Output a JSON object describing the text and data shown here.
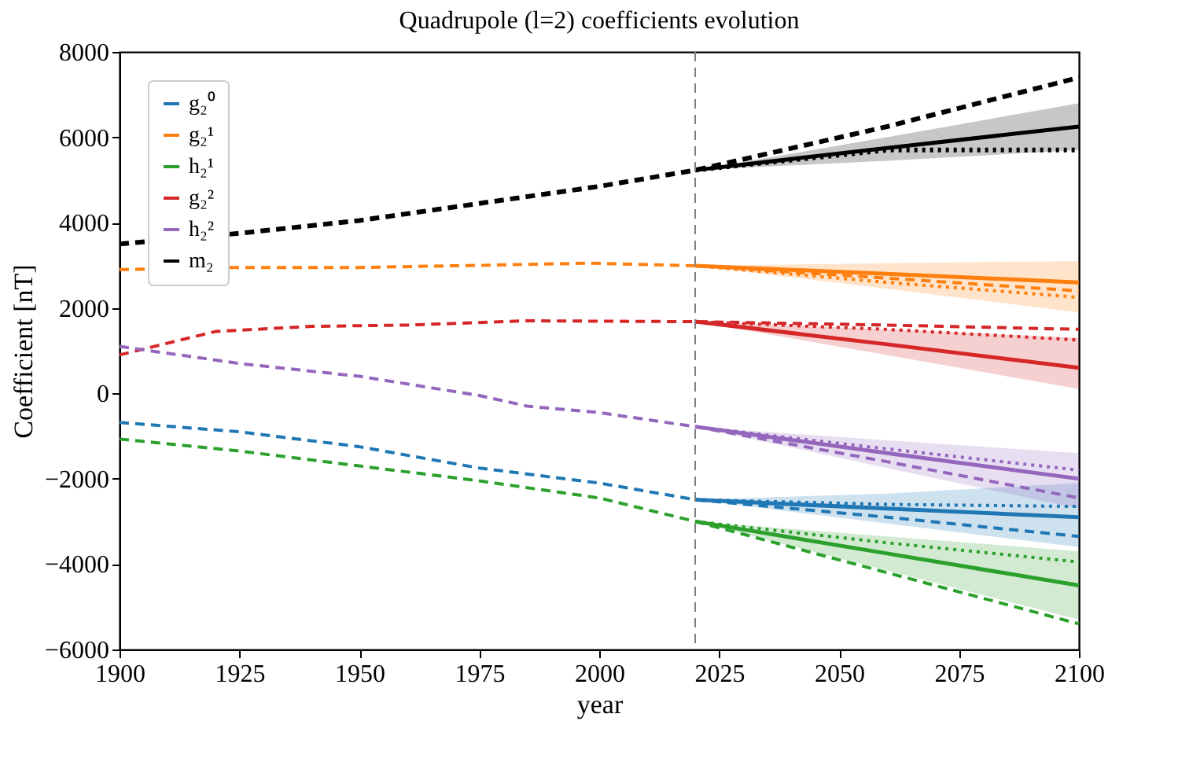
{
  "chart_data": {
    "type": "line",
    "title": "Quadrupole (l=2) coefficients evolution",
    "xlabel": "year",
    "ylabel": "Coefficient [nT]",
    "xlim": [
      1900,
      2100
    ],
    "xticks": [
      1900,
      1925,
      1950,
      1975,
      2000,
      2025,
      2050,
      2075,
      2100
    ],
    "ylim": [
      -6000,
      8000
    ],
    "yticks": [
      {
        "value": -6000,
        "label": "−6000"
      },
      {
        "value": -4000,
        "label": "−4000"
      },
      {
        "value": -2000,
        "label": "−2000"
      },
      0,
      2000,
      4000,
      6000,
      8000
    ],
    "grid": false,
    "legend": "top left",
    "marker": "none",
    "ref_lines": [
      {
        "axis": "x",
        "value": 2020,
        "label": null,
        "color": "#808080",
        "line_style": "dashed"
      }
    ],
    "series": [
      {
        "color": "#000000",
        "line_style": "dashed",
        "x": [
          1900,
          1925,
          1950,
          1975,
          2000,
          2020,
          2060,
          2100
        ],
        "values": [
          3500,
          3750,
          4050,
          4450,
          4850,
          5230,
          6250,
          7400
        ]
      },
      {
        "color": "#ff7f0e",
        "line_style": "dashed",
        "x": [
          1900,
          1925,
          1950,
          1975,
          1998,
          2020,
          2060,
          2100
        ],
        "values": [
          2900,
          2950,
          2950,
          3000,
          3050,
          2990,
          2700,
          2400
        ]
      },
      {
        "color": "#d62728",
        "line_style": "dashed",
        "x": [
          1900,
          1920,
          1940,
          1960,
          1985,
          2020,
          2060,
          2100
        ],
        "values": [
          900,
          1450,
          1570,
          1600,
          1700,
          1680,
          1600,
          1500
        ]
      },
      {
        "color": "#9467bd",
        "line_style": "dashed",
        "x": [
          1900,
          1925,
          1950,
          1975,
          1985,
          2000,
          2020,
          2060,
          2100
        ],
        "values": [
          1100,
          700,
          400,
          -50,
          -300,
          -450,
          -780,
          -1600,
          -2450
        ]
      },
      {
        "color": "#1f77b4",
        "line_style": "dashed",
        "x": [
          1900,
          1925,
          1950,
          1975,
          2000,
          2020,
          2060,
          2100
        ],
        "values": [
          -680,
          -900,
          -1250,
          -1750,
          -2100,
          -2490,
          -2900,
          -3350
        ]
      },
      {
        "color": "#2ca02c",
        "line_style": "dashed",
        "x": [
          1900,
          1925,
          1950,
          1975,
          2000,
          2020,
          2060,
          2100
        ],
        "values": [
          -1070,
          -1350,
          -1700,
          -2050,
          -2450,
          -3000,
          -4200,
          -5400
        ]
      },
      {
        "name": "g₂⁰",
        "color": "#1f77b4",
        "line_style": "solid",
        "x": [
          2020,
          2060,
          2100
        ],
        "values": [
          -2490,
          -2700,
          -2900
        ],
        "lower": [
          -2490,
          -3050,
          -3600
        ],
        "upper": [
          -2490,
          -2350,
          -2100
        ]
      },
      {
        "name": "g₂¹",
        "color": "#ff7f0e",
        "line_style": "solid",
        "x": [
          2020,
          2060,
          2100
        ],
        "values": [
          2990,
          2800,
          2600
        ],
        "lower": [
          2990,
          2450,
          1900
        ],
        "upper": [
          2990,
          3050,
          3100
        ]
      },
      {
        "name": "h₂¹",
        "color": "#2ca02c",
        "line_style": "solid",
        "x": [
          2020,
          2060,
          2100
        ],
        "values": [
          -3000,
          -3750,
          -4500
        ],
        "lower": [
          -3000,
          -4150,
          -5300
        ],
        "upper": [
          -3000,
          -3350,
          -3700
        ]
      },
      {
        "name": "g₂²",
        "color": "#d62728",
        "line_style": "solid",
        "x": [
          2020,
          2060,
          2100
        ],
        "values": [
          1680,
          1150,
          600
        ],
        "lower": [
          1680,
          900,
          100
        ],
        "upper": [
          1680,
          1500,
          1300
        ]
      },
      {
        "name": "h₂²",
        "color": "#9467bd",
        "line_style": "solid",
        "x": [
          2020,
          2060,
          2100
        ],
        "values": [
          -780,
          -1400,
          -2000
        ],
        "lower": [
          -780,
          -1750,
          -2700
        ],
        "upper": [
          -780,
          -1100,
          -1400
        ]
      },
      {
        "name": "m₂",
        "color": "#000000",
        "line_style": "solid",
        "x": [
          2020,
          2060,
          2100
        ],
        "values": [
          5230,
          5750,
          6250
        ],
        "lower": [
          5230,
          5450,
          5700
        ],
        "upper": [
          5230,
          6000,
          6800
        ]
      },
      {
        "color": "#000000",
        "line_style": "dotted",
        "x": [
          2020,
          2060,
          2100
        ],
        "values": [
          5230,
          5700,
          5700
        ]
      },
      {
        "color": "#ff7f0e",
        "line_style": "dotted",
        "x": [
          2020,
          2060,
          2100
        ],
        "values": [
          2990,
          2600,
          2250
        ]
      },
      {
        "color": "#d62728",
        "line_style": "dotted",
        "x": [
          2020,
          2060,
          2100
        ],
        "values": [
          1680,
          1500,
          1250
        ]
      },
      {
        "color": "#9467bd",
        "line_style": "dotted",
        "x": [
          2020,
          2060,
          2100
        ],
        "values": [
          -780,
          -1300,
          -1800
        ]
      },
      {
        "color": "#1f77b4",
        "line_style": "dotted",
        "x": [
          2020,
          2060,
          2100
        ],
        "values": [
          -2490,
          -2600,
          -2650
        ]
      },
      {
        "color": "#2ca02c",
        "line_style": "dotted",
        "x": [
          2020,
          2060,
          2100
        ],
        "values": [
          -3000,
          -3500,
          -3950
        ]
      }
    ]
  }
}
